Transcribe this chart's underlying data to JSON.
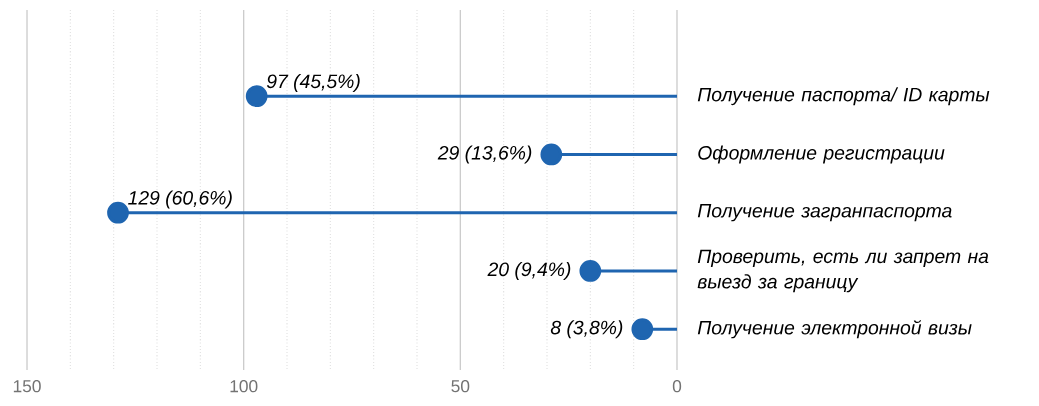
{
  "chart_data": {
    "type": "lollipop",
    "orientation": "horizontal",
    "categories": [
      "Получение паспорта/ ID карты",
      "Оформление регистрации",
      "Получение загранпаспорта",
      "Проверить, есть ли запрет на выезд за границу",
      "Получение электронной визы"
    ],
    "values": [
      97,
      29,
      129,
      20,
      8
    ],
    "value_labels": [
      "97 (45,5%)",
      "29 (13,6%)",
      "129 (60,6%)",
      "20 (9,4%)",
      "8 (3,8%)"
    ],
    "color": "#1f65b0",
    "marker": "circle",
    "grid": "x",
    "xlim": [
      150,
      0
    ],
    "xticks": [
      150,
      100,
      50,
      0,
      {
        "value": 140,
        "label": null
      },
      {
        "value": 130,
        "label": null
      },
      {
        "value": 120,
        "label": null
      },
      {
        "value": 110,
        "label": null
      },
      {
        "value": 90,
        "label": null
      },
      {
        "value": 80,
        "label": null
      },
      {
        "value": 70,
        "label": null
      },
      {
        "value": 60,
        "label": null
      },
      {
        "value": 40,
        "label": null
      },
      {
        "value": 30,
        "label": null
      },
      {
        "value": 20,
        "label": null
      },
      {
        "value": 10,
        "label": null
      }
    ]
  }
}
